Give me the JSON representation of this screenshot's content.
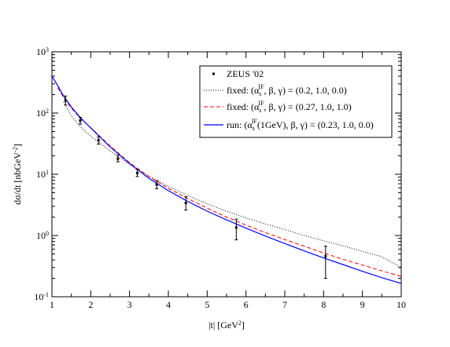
{
  "chart_data": {
    "type": "line",
    "xlabel": {
      "text": "|t|    [GeV",
      "sup": "2",
      "tail": "]"
    },
    "ylabel": {
      "text": "dσ/dt    [nbGeV",
      "sup": "-2",
      "tail": "]"
    },
    "xlim": [
      1,
      10
    ],
    "ylim": [
      0.1,
      1000
    ],
    "yscale": "log",
    "grid": false,
    "legend_position": "top-right",
    "x_ticks": [
      "1",
      "2",
      "3",
      "4",
      "5",
      "6",
      "7",
      "8",
      "9",
      "10"
    ],
    "y_ticks": [
      {
        "value": 0.1,
        "base": "10",
        "exp": "-1"
      },
      {
        "value": 1,
        "base": "10",
        "exp": "0"
      },
      {
        "value": 10,
        "base": "10",
        "exp": "1"
      },
      {
        "value": 100,
        "base": "10",
        "exp": "2"
      },
      {
        "value": 1000,
        "base": "10",
        "exp": "3"
      }
    ],
    "data_points": {
      "name": "ZEUS  '02",
      "color": "#000000",
      "points": [
        {
          "x": 1.35,
          "y": 160,
          "ylo": 135,
          "yhi": 190
        },
        {
          "x": 1.73,
          "y": 75,
          "ylo": 66,
          "yhi": 85
        },
        {
          "x": 2.2,
          "y": 36,
          "ylo": 31,
          "yhi": 41
        },
        {
          "x": 2.7,
          "y": 18,
          "ylo": 16,
          "yhi": 20.5
        },
        {
          "x": 3.2,
          "y": 10.5,
          "ylo": 9.2,
          "yhi": 12
        },
        {
          "x": 3.7,
          "y": 6.8,
          "ylo": 5.8,
          "yhi": 7.9
        },
        {
          "x": 4.45,
          "y": 3.4,
          "ylo": 2.6,
          "yhi": 4.3
        },
        {
          "x": 5.75,
          "y": 1.35,
          "ylo": 0.85,
          "yhi": 1.85
        },
        {
          "x": 8.05,
          "y": 0.46,
          "ylo": 0.2,
          "yhi": 0.67
        }
      ]
    },
    "series": [
      {
        "name": "fixed",
        "label_prefix": "fixed: (α",
        "label_sub": "s",
        "label_sup": "IF",
        "label_suffix": ", β, γ) = (0.2, 1.0, 0.0)",
        "color": "#000000",
        "style": "dotted",
        "points": [
          [
            1.3,
            150
          ],
          [
            1.5,
            90
          ],
          [
            1.75,
            58
          ],
          [
            2,
            42
          ],
          [
            2.5,
            24
          ],
          [
            3,
            14.5
          ],
          [
            3.5,
            9.3
          ],
          [
            4,
            6.3
          ],
          [
            4.5,
            4.5
          ],
          [
            5,
            3.3
          ],
          [
            5.5,
            2.5
          ],
          [
            6,
            1.95
          ],
          [
            6.5,
            1.55
          ],
          [
            7,
            1.25
          ],
          [
            7.5,
            1.0
          ],
          [
            8,
            0.82
          ],
          [
            8.5,
            0.68
          ],
          [
            9,
            0.55
          ],
          [
            9.5,
            0.45
          ],
          [
            10,
            0.3
          ]
        ]
      },
      {
        "name": "fixed",
        "label_prefix": "fixed: (α",
        "label_sub": "s",
        "label_sup": "IF",
        "label_suffix": ", β, γ) = (0.27, 1.0, 1.0)",
        "color": "#ff0000",
        "style": "dashed",
        "points": [
          [
            1.15,
            260
          ],
          [
            1.3,
            180
          ],
          [
            1.5,
            120
          ],
          [
            1.75,
            80
          ],
          [
            2,
            58
          ],
          [
            2.5,
            29
          ],
          [
            3,
            15.5
          ],
          [
            3.5,
            9.2
          ],
          [
            4,
            5.9
          ],
          [
            4.5,
            4.0
          ],
          [
            5,
            2.8
          ],
          [
            5.5,
            2.0
          ],
          [
            6,
            1.48
          ],
          [
            6.5,
            1.12
          ],
          [
            7,
            0.86
          ],
          [
            7.5,
            0.67
          ],
          [
            8,
            0.52
          ],
          [
            8.5,
            0.41
          ],
          [
            9,
            0.33
          ],
          [
            9.5,
            0.265
          ],
          [
            10,
            0.215
          ]
        ]
      },
      {
        "name": "run",
        "label_prefix": "run: (α",
        "label_sub": "s",
        "label_sup": "IF",
        "label_suffix": "(1GeV), β, γ) = (0.23, 1.0, 0.0)",
        "color": "#0000ff",
        "style": "solid",
        "points": [
          [
            1,
            400
          ],
          [
            1.15,
            280
          ],
          [
            1.3,
            190
          ],
          [
            1.5,
            125
          ],
          [
            1.75,
            82
          ],
          [
            2,
            57
          ],
          [
            2.5,
            28
          ],
          [
            3,
            15
          ],
          [
            3.5,
            8.6
          ],
          [
            4,
            5.4
          ],
          [
            4.5,
            3.6
          ],
          [
            5,
            2.5
          ],
          [
            5.5,
            1.8
          ],
          [
            6,
            1.32
          ],
          [
            6.5,
            0.98
          ],
          [
            7,
            0.74
          ],
          [
            7.5,
            0.56
          ],
          [
            8,
            0.43
          ],
          [
            8.5,
            0.335
          ],
          [
            9,
            0.26
          ],
          [
            9.5,
            0.205
          ],
          [
            10,
            0.165
          ]
        ]
      }
    ]
  }
}
